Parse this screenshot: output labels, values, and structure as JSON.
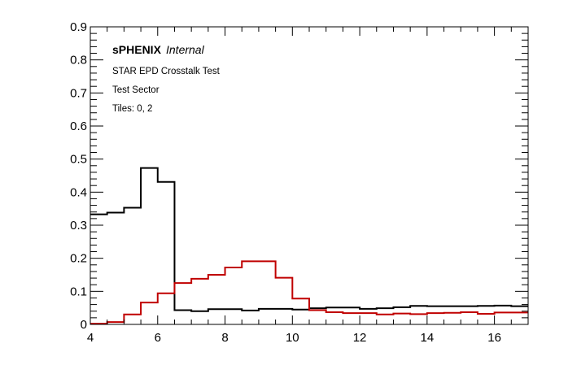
{
  "chart_data": {
    "type": "line",
    "step": true,
    "xlim": [
      4,
      17
    ],
    "ylim": [
      0,
      0.9
    ],
    "x_ticks": [
      4,
      6,
      8,
      10,
      12,
      14,
      16
    ],
    "y_ticks": [
      0,
      0.1,
      0.2,
      0.3,
      0.4,
      0.5,
      0.6,
      0.7,
      0.8,
      0.9
    ],
    "x_tick_labels": [
      "4",
      "6",
      "8",
      "10",
      "12",
      "14",
      "16"
    ],
    "y_tick_labels": [
      "0",
      "0.1",
      "0.2",
      "0.3",
      "0.4",
      "0.5",
      "0.6",
      "0.7",
      "0.8",
      "0.9"
    ],
    "grid": false,
    "bin_width": 0.5,
    "bin_edges": [
      4,
      4.5,
      5,
      5.5,
      6,
      6.5,
      7,
      7.5,
      8,
      8.5,
      9,
      9.5,
      10,
      10.5,
      11,
      11.5,
      12,
      12.5,
      13,
      13.5,
      14,
      14.5,
      15,
      15.5,
      16,
      16.5,
      17
    ],
    "annotations": {
      "experiment": "sPHENIX",
      "status": "Internal",
      "line1": "STAR EPD Crosstalk Test",
      "line2": "Test Sector",
      "line3": "Tiles: 0, 2"
    },
    "series": [
      {
        "color": "#000000",
        "values": [
          0.333,
          0.338,
          0.353,
          0.473,
          0.431,
          0.043,
          0.04,
          0.046,
          0.046,
          0.042,
          0.047,
          0.047,
          0.045,
          0.049,
          0.051,
          0.051,
          0.047,
          0.049,
          0.052,
          0.056,
          0.055,
          0.055,
          0.055,
          0.056,
          0.057,
          0.055
        ]
      },
      {
        "color": "#c00000",
        "values": [
          0.002,
          0.007,
          0.03,
          0.066,
          0.094,
          0.125,
          0.138,
          0.15,
          0.172,
          0.191,
          0.191,
          0.141,
          0.078,
          0.043,
          0.037,
          0.034,
          0.034,
          0.03,
          0.033,
          0.031,
          0.034,
          0.035,
          0.037,
          0.032,
          0.036,
          0.036
        ]
      }
    ]
  }
}
